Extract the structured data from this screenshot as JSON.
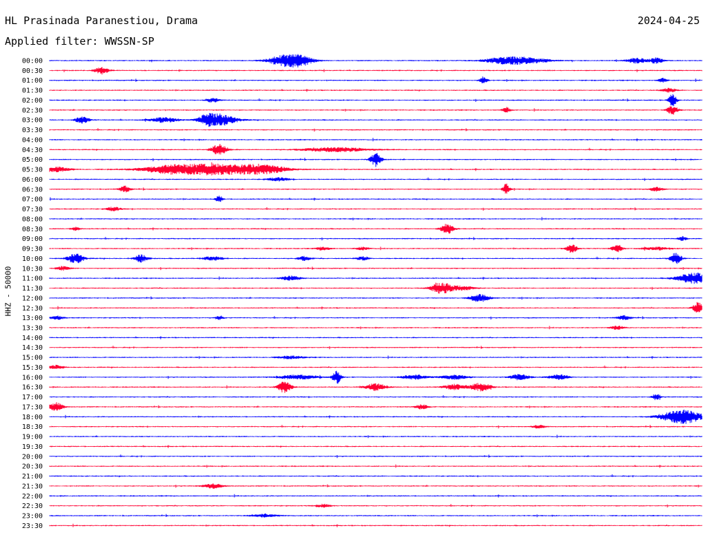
{
  "header": {
    "station": "HL Prasinada Paranestiou, Drama",
    "date": "2024-04-25",
    "filter": "Applied filter: WWSSN-SP"
  },
  "chart_data": {
    "type": "line",
    "title": "HL Prasinada Paranestiou, Drama",
    "date": "2024-04-25",
    "filter": "WWSSN-SP",
    "ylabel": "HHZ - 50000",
    "row_labels": [
      "00:00",
      "00:30",
      "01:00",
      "01:30",
      "02:00",
      "02:30",
      "03:00",
      "03:30",
      "04:00",
      "04:30",
      "05:00",
      "05:30",
      "06:00",
      "06:30",
      "07:00",
      "07:30",
      "08:00",
      "08:30",
      "09:00",
      "09:30",
      "10:00",
      "10:30",
      "11:00",
      "11:30",
      "12:00",
      "12:30",
      "13:00",
      "13:30",
      "14:00",
      "14:30",
      "15:00",
      "15:30",
      "16:00",
      "16:30",
      "17:00",
      "17:30",
      "18:00",
      "18:30",
      "19:00",
      "19:30",
      "20:00",
      "20:30",
      "21:00",
      "21:30",
      "22:00",
      "22:30",
      "23:00",
      "23:30"
    ],
    "colors": [
      "#0000ff",
      "#ff0033"
    ],
    "row_events": [
      [
        [
          0.36,
          0.7,
          0.025
        ],
        [
          0.385,
          0.6,
          0.02
        ],
        [
          0.7,
          0.5,
          0.03
        ],
        [
          0.74,
          0.3,
          0.03
        ],
        [
          0.9,
          0.35,
          0.015
        ],
        [
          0.93,
          0.4,
          0.01
        ]
      ],
      [
        [
          0.08,
          0.5,
          0.01
        ]
      ],
      [
        [
          0.665,
          0.5,
          0.006
        ],
        [
          0.94,
          0.35,
          0.006
        ]
      ],
      [
        [
          0.95,
          0.3,
          0.01
        ]
      ],
      [
        [
          0.25,
          0.3,
          0.01
        ],
        [
          0.955,
          0.9,
          0.006
        ]
      ],
      [
        [
          0.7,
          0.4,
          0.006
        ],
        [
          0.955,
          0.6,
          0.008
        ]
      ],
      [
        [
          0.05,
          0.5,
          0.01
        ],
        [
          0.175,
          0.35,
          0.02
        ],
        [
          0.26,
          0.85,
          0.025
        ],
        [
          0.24,
          0.5,
          0.01
        ]
      ],
      [],
      [],
      [
        [
          0.26,
          0.75,
          0.012
        ],
        [
          0.44,
          0.3,
          0.05
        ]
      ],
      [
        [
          0.5,
          1.0,
          0.008
        ]
      ],
      [
        [
          0.01,
          0.35,
          0.02
        ],
        [
          0.25,
          0.8,
          0.08
        ],
        [
          0.18,
          0.3,
          0.03
        ],
        [
          0.33,
          0.4,
          0.03
        ]
      ],
      [
        [
          0.35,
          0.25,
          0.015
        ]
      ],
      [
        [
          0.115,
          0.45,
          0.008
        ],
        [
          0.7,
          0.8,
          0.005
        ],
        [
          0.93,
          0.3,
          0.01
        ]
      ],
      [
        [
          0.26,
          0.45,
          0.005
        ]
      ],
      [
        [
          0.098,
          0.3,
          0.01
        ]
      ],
      [],
      [
        [
          0.04,
          0.3,
          0.006
        ],
        [
          0.61,
          0.7,
          0.01
        ]
      ],
      [
        [
          0.97,
          0.3,
          0.006
        ]
      ],
      [
        [
          0.42,
          0.25,
          0.01
        ],
        [
          0.48,
          0.2,
          0.01
        ],
        [
          0.8,
          0.65,
          0.008
        ],
        [
          0.87,
          0.5,
          0.008
        ],
        [
          0.93,
          0.2,
          0.02
        ]
      ],
      [
        [
          0.04,
          0.75,
          0.012
        ],
        [
          0.14,
          0.55,
          0.01
        ],
        [
          0.25,
          0.3,
          0.015
        ],
        [
          0.39,
          0.3,
          0.01
        ],
        [
          0.48,
          0.25,
          0.01
        ],
        [
          0.96,
          0.85,
          0.008
        ]
      ],
      [
        [
          0.02,
          0.3,
          0.01
        ]
      ],
      [
        [
          0.37,
          0.3,
          0.015
        ],
        [
          0.99,
          0.8,
          0.025
        ]
      ],
      [
        [
          0.6,
          0.75,
          0.015
        ],
        [
          0.63,
          0.3,
          0.02
        ]
      ],
      [
        [
          0.66,
          0.55,
          0.015
        ]
      ],
      [
        [
          0.995,
          0.85,
          0.008
        ]
      ],
      [
        [
          0.01,
          0.3,
          0.01
        ],
        [
          0.26,
          0.3,
          0.006
        ],
        [
          0.88,
          0.3,
          0.01
        ]
      ],
      [
        [
          0.87,
          0.25,
          0.01
        ]
      ],
      [],
      [],
      [
        [
          0.37,
          0.2,
          0.02
        ]
      ],
      [
        [
          0.01,
          0.3,
          0.01
        ]
      ],
      [
        [
          0.44,
          1.0,
          0.006
        ],
        [
          0.38,
          0.3,
          0.03
        ],
        [
          0.56,
          0.3,
          0.02
        ],
        [
          0.72,
          0.4,
          0.015
        ],
        [
          0.78,
          0.35,
          0.015
        ],
        [
          0.62,
          0.3,
          0.02
        ]
      ],
      [
        [
          0.36,
          0.85,
          0.01
        ],
        [
          0.5,
          0.5,
          0.015
        ],
        [
          0.62,
          0.4,
          0.015
        ],
        [
          0.66,
          0.6,
          0.015
        ]
      ],
      [
        [
          0.93,
          0.45,
          0.006
        ]
      ],
      [
        [
          0.01,
          0.6,
          0.01
        ],
        [
          0.57,
          0.35,
          0.01
        ]
      ],
      [
        [
          0.97,
          1.0,
          0.03
        ]
      ],
      [
        [
          0.75,
          0.2,
          0.01
        ]
      ],
      [],
      [],
      [],
      [],
      [],
      [
        [
          0.25,
          0.3,
          0.015
        ]
      ],
      [],
      [
        [
          0.42,
          0.25,
          0.01
        ]
      ],
      [
        [
          0.33,
          0.2,
          0.02
        ]
      ],
      []
    ]
  }
}
